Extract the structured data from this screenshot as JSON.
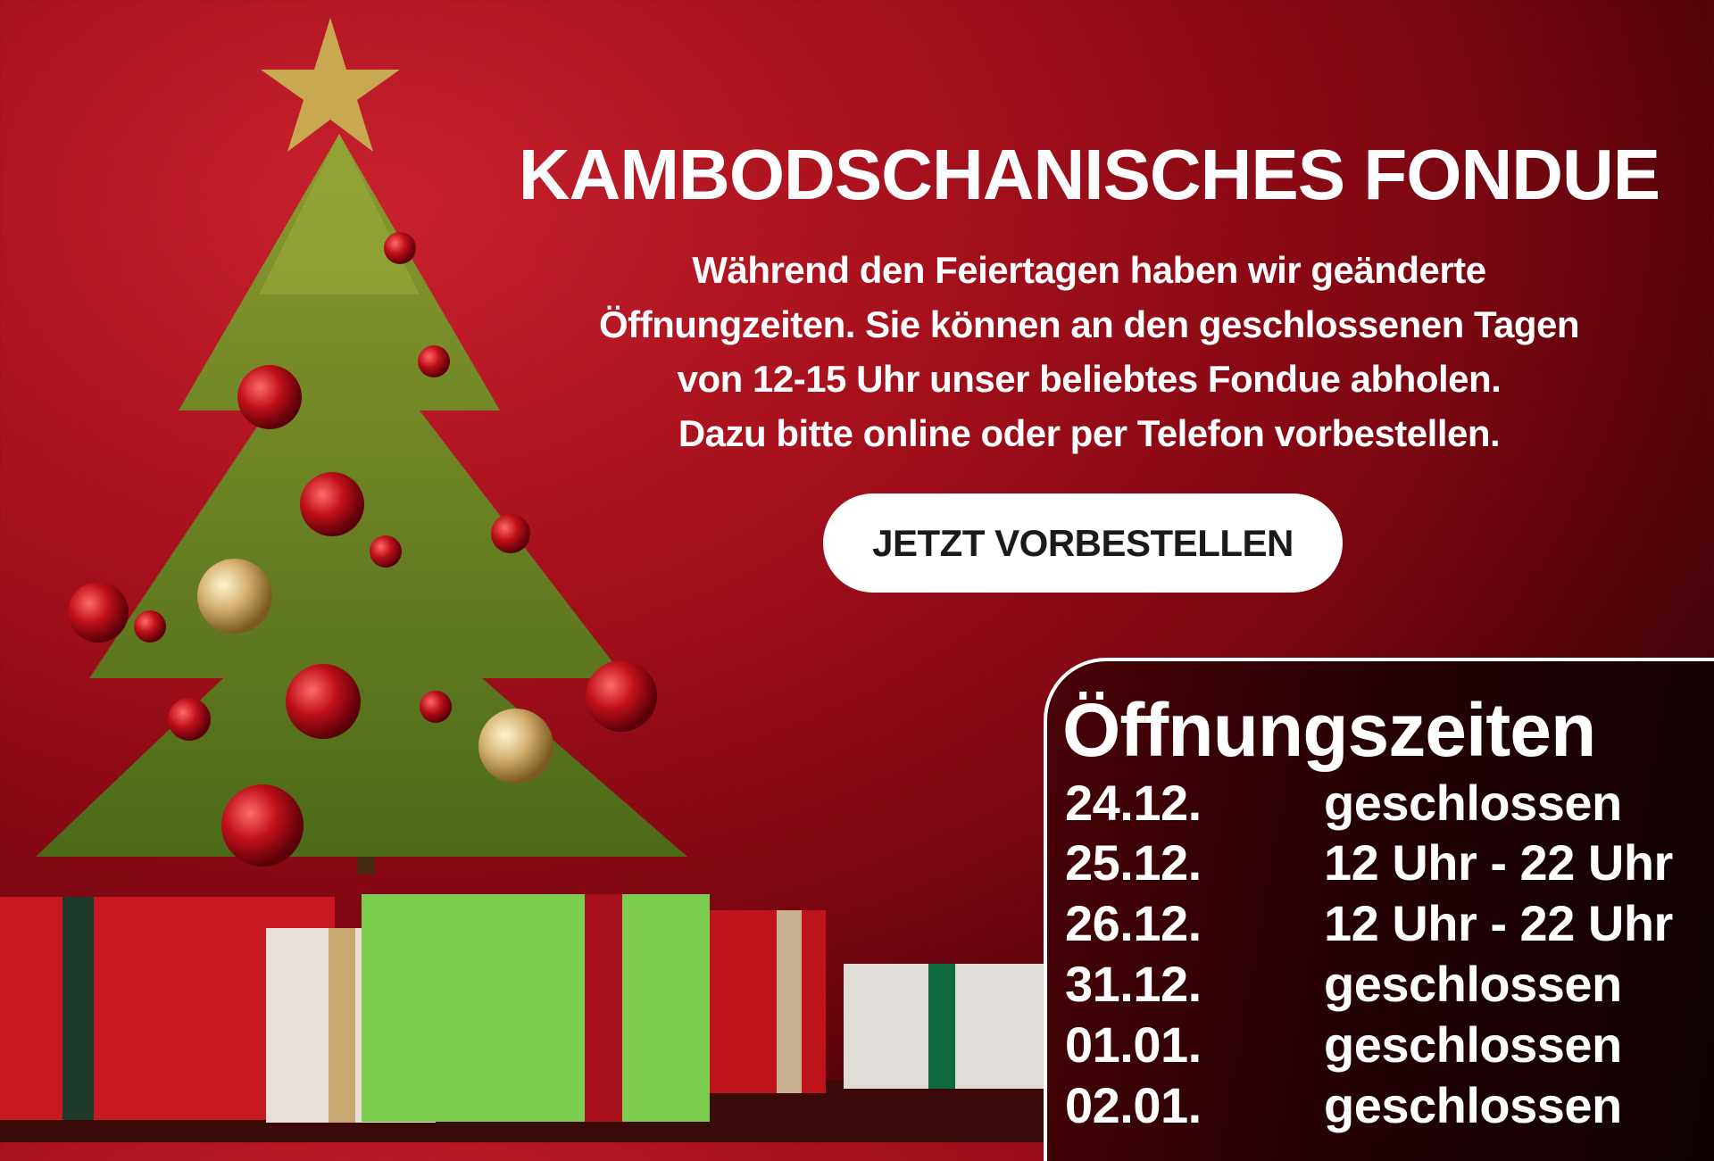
{
  "headline": "KAMBODSCHANISCHES FONDUE",
  "intro_lines": [
    "Während den Feiertagen haben wir geänderte",
    "Öffnungzeiten. Sie können an den geschlossenen Tagen",
    "von 12-15 Uhr unser beliebtes Fondue abholen.",
    "Dazu bitte online oder per Telefon vorbestellen."
  ],
  "cta_label": "JETZT VORBESTELLEN",
  "hours": {
    "title": "Öffnungszeiten",
    "rows": [
      {
        "date": "24.12.",
        "time": "geschlossen"
      },
      {
        "date": "25.12.",
        "time": "12 Uhr - 22 Uhr"
      },
      {
        "date": "26.12.",
        "time": "12 Uhr - 22 Uhr"
      },
      {
        "date": "31.12.",
        "time": "geschlossen"
      },
      {
        "date": "01.01.",
        "time": "geschlossen"
      },
      {
        "date": "02.01.",
        "time": "geschlossen"
      }
    ]
  },
  "colors": {
    "background": "#a5101c",
    "panel": "#250105",
    "button": "#ffffff",
    "button_text": "#1a1a1a"
  },
  "image": {
    "subject": "christmas-tree-with-gifts"
  }
}
